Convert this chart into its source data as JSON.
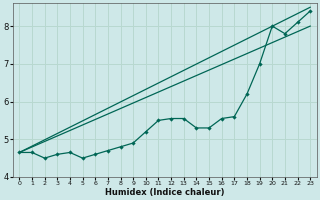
{
  "xlabel": "Humidex (Indice chaleur)",
  "bg_color": "#cee8e8",
  "grid_color": "#b8d8d0",
  "line_color": "#006655",
  "xlim": [
    -0.5,
    23.5
  ],
  "ylim": [
    4.0,
    8.6
  ],
  "xticks": [
    0,
    1,
    2,
    3,
    4,
    5,
    6,
    7,
    8,
    9,
    10,
    11,
    12,
    13,
    14,
    15,
    16,
    17,
    18,
    19,
    20,
    21,
    22,
    23
  ],
  "yticks": [
    4,
    5,
    6,
    7,
    8
  ],
  "wiggly": {
    "x": [
      0,
      1,
      2,
      3,
      4,
      5,
      6,
      7,
      8,
      9,
      10,
      11,
      12,
      13,
      14,
      15,
      16,
      17,
      18,
      19,
      20,
      21,
      22,
      23
    ],
    "y": [
      4.65,
      4.65,
      4.5,
      4.6,
      4.65,
      4.5,
      4.6,
      4.7,
      4.8,
      4.9,
      5.2,
      5.5,
      5.55,
      5.55,
      5.3,
      5.3,
      5.55,
      5.6,
      6.2,
      7.0,
      8.0,
      7.8,
      8.1,
      8.4
    ]
  },
  "upper": {
    "x": [
      0,
      23
    ],
    "y": [
      4.65,
      8.5
    ]
  },
  "lower": {
    "x": [
      0,
      23
    ],
    "y": [
      4.65,
      8.0
    ]
  }
}
